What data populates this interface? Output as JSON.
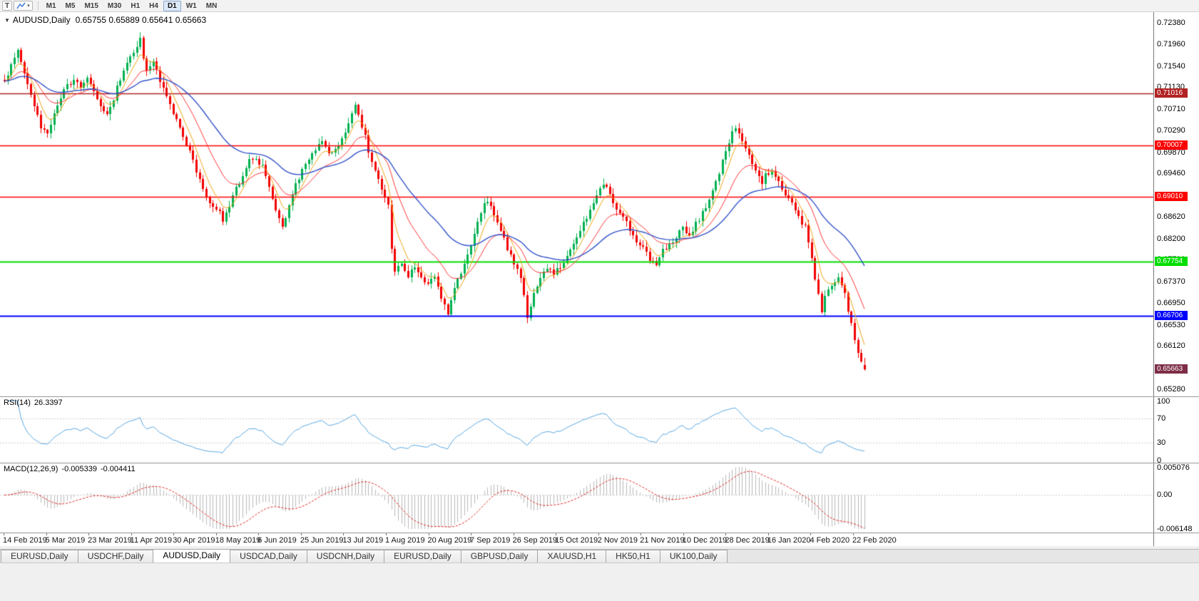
{
  "toolbar": {
    "t_button": "T",
    "dropdown_caret": "▾",
    "timeframes": [
      "M1",
      "M5",
      "M15",
      "M30",
      "H1",
      "H4",
      "D1",
      "W1",
      "MN"
    ],
    "active_timeframe": "D1"
  },
  "chart": {
    "collapse_arrow": "▼",
    "symbol_label": "AUDUSD,Daily",
    "ohlc_text": "0.65755 0.65889 0.65641 0.65663"
  },
  "chart_data": {
    "type": "candlestick",
    "symbol": "AUDUSD",
    "timeframe": "Daily",
    "last_candle": {
      "open": 0.65755,
      "high": 0.65889,
      "low": 0.65641,
      "close": 0.65663
    },
    "current_price_label": "0.65663",
    "current_price_box_color": "#7d2d46",
    "candle_colors": {
      "up": "#00b050",
      "down": "#f20000"
    },
    "price_axis": {
      "ticks": [
        "0.72380",
        "0.71960",
        "0.71540",
        "0.71130",
        "0.70710",
        "0.70290",
        "0.69870",
        "0.69460",
        "0.69040",
        "0.68620",
        "0.68200",
        "0.67790",
        "0.67370",
        "0.66950",
        "0.66530",
        "0.66120",
        "0.65700",
        "0.65280"
      ]
    },
    "time_labels": [
      "14 Feb 2019",
      "5 Mar 2019",
      "23 Mar 2019",
      "11 Apr 2019",
      "30 Apr 2019",
      "18 May 2019",
      "6 Jun 2019",
      "25 Jun 2019",
      "13 Jul 2019",
      "1 Aug 2019",
      "20 Aug 2019",
      "7 Sep 2019",
      "26 Sep 2019",
      "15 Oct 2019",
      "2 Nov 2019",
      "21 Nov 2019",
      "10 Dec 2019",
      "28 Dec 2019",
      "16 Jan 2020",
      "4 Feb 2020",
      "22 Feb 2020"
    ],
    "horizontal_lines": [
      {
        "label": "0.71016",
        "price": 0.71016,
        "color": "#b22222",
        "width": 1.4
      },
      {
        "label": "0.70007",
        "price": 0.70007,
        "color": "#ff0000",
        "width": 1.4
      },
      {
        "label": "0.69010",
        "price": 0.6901,
        "color": "#ff0000",
        "width": 1.4
      },
      {
        "label": "0.67754",
        "price": 0.67754,
        "color": "#00dd00",
        "width": 2
      },
      {
        "label": "0.66706",
        "price": 0.66706,
        "color": "#0000ff",
        "width": 2
      }
    ],
    "moving_averages": [
      {
        "name": "fast-ma-yellow",
        "color": "#eda313",
        "period": 6,
        "width": 1
      },
      {
        "name": "medium-ma-red",
        "color": "#ff3434",
        "period": 16,
        "width": 1
      },
      {
        "name": "slow-ma-blue",
        "color": "#3353c8",
        "period": 38,
        "width": 1.4
      }
    ],
    "candle_count": 261,
    "price_path_anchors": [
      [
        0,
        0.7128
      ],
      [
        2,
        0.7152
      ],
      [
        4,
        0.7188
      ],
      [
        5,
        0.7165
      ],
      [
        7,
        0.712
      ],
      [
        9,
        0.7075
      ],
      [
        11,
        0.704
      ],
      [
        13,
        0.7022
      ],
      [
        15,
        0.706
      ],
      [
        17,
        0.7095
      ],
      [
        19,
        0.7115
      ],
      [
        21,
        0.7128
      ],
      [
        23,
        0.7118
      ],
      [
        25,
        0.7128
      ],
      [
        27,
        0.711
      ],
      [
        29,
        0.708
      ],
      [
        31,
        0.7058
      ],
      [
        33,
        0.7092
      ],
      [
        35,
        0.713
      ],
      [
        37,
        0.7155
      ],
      [
        39,
        0.718
      ],
      [
        41,
        0.7203
      ],
      [
        42,
        0.717
      ],
      [
        43,
        0.714
      ],
      [
        45,
        0.7162
      ],
      [
        47,
        0.7128
      ],
      [
        49,
        0.7095
      ],
      [
        51,
        0.706
      ],
      [
        53,
        0.703
      ],
      [
        55,
        0.7
      ],
      [
        57,
        0.697
      ],
      [
        59,
        0.6935
      ],
      [
        61,
        0.6905
      ],
      [
        63,
        0.688
      ],
      [
        65,
        0.6868
      ],
      [
        66,
        0.6855
      ],
      [
        68,
        0.6885
      ],
      [
        70,
        0.6915
      ],
      [
        72,
        0.6945
      ],
      [
        74,
        0.6968
      ],
      [
        76,
        0.6975
      ],
      [
        78,
        0.6958
      ],
      [
        80,
        0.692
      ],
      [
        82,
        0.6875
      ],
      [
        84,
        0.6842
      ],
      [
        86,
        0.688
      ],
      [
        88,
        0.6925
      ],
      [
        90,
        0.695
      ],
      [
        92,
        0.6972
      ],
      [
        94,
        0.699
      ],
      [
        96,
        0.7005
      ],
      [
        98,
        0.698
      ],
      [
        100,
        0.6995
      ],
      [
        102,
        0.7015
      ],
      [
        104,
        0.704
      ],
      [
        106,
        0.7078
      ],
      [
        108,
        0.704
      ],
      [
        110,
        0.6992
      ],
      [
        112,
        0.6952
      ],
      [
        114,
        0.692
      ],
      [
        116,
        0.688
      ],
      [
        117,
        0.68
      ],
      [
        118,
        0.6755
      ],
      [
        120,
        0.6772
      ],
      [
        122,
        0.6748
      ],
      [
        124,
        0.6762
      ],
      [
        127,
        0.6732
      ],
      [
        130,
        0.6748
      ],
      [
        132,
        0.67
      ],
      [
        134,
        0.6678
      ],
      [
        136,
        0.6722
      ],
      [
        138,
        0.6752
      ],
      [
        140,
        0.679
      ],
      [
        142,
        0.683
      ],
      [
        144,
        0.6872
      ],
      [
        146,
        0.6892
      ],
      [
        148,
        0.6862
      ],
      [
        150,
        0.6832
      ],
      [
        152,
        0.6802
      ],
      [
        154,
        0.6772
      ],
      [
        156,
        0.6742
      ],
      [
        157,
        0.6705
      ],
      [
        158,
        0.6672
      ],
      [
        160,
        0.6712
      ],
      [
        162,
        0.6742
      ],
      [
        164,
        0.6762
      ],
      [
        166,
        0.6748
      ],
      [
        169,
        0.6778
      ],
      [
        172,
        0.6812
      ],
      [
        175,
        0.6848
      ],
      [
        178,
        0.6888
      ],
      [
        180,
        0.6918
      ],
      [
        181,
        0.6928
      ],
      [
        183,
        0.6902
      ],
      [
        186,
        0.6868
      ],
      [
        189,
        0.6838
      ],
      [
        192,
        0.6808
      ],
      [
        195,
        0.6782
      ],
      [
        197,
        0.6772
      ],
      [
        199,
        0.6795
      ],
      [
        202,
        0.6818
      ],
      [
        205,
        0.6838
      ],
      [
        207,
        0.6822
      ],
      [
        209,
        0.6848
      ],
      [
        211,
        0.6868
      ],
      [
        212,
        0.688
      ],
      [
        214,
        0.691
      ],
      [
        216,
        0.695
      ],
      [
        218,
        0.699
      ],
      [
        220,
        0.7028
      ],
      [
        221,
        0.703
      ],
      [
        223,
        0.7008
      ],
      [
        225,
        0.6978
      ],
      [
        227,
        0.695
      ],
      [
        229,
        0.6925
      ],
      [
        230,
        0.6942
      ],
      [
        232,
        0.6952
      ],
      [
        234,
        0.6928
      ],
      [
        236,
        0.6905
      ],
      [
        238,
        0.6885
      ],
      [
        240,
        0.6862
      ],
      [
        242,
        0.684
      ],
      [
        243,
        0.6815
      ],
      [
        244,
        0.6785
      ],
      [
        245,
        0.6745
      ],
      [
        246,
        0.671
      ],
      [
        247,
        0.6682
      ],
      [
        248,
        0.6705
      ],
      [
        250,
        0.6732
      ],
      [
        252,
        0.6748
      ],
      [
        253,
        0.6732
      ],
      [
        254,
        0.6712
      ],
      [
        255,
        0.6682
      ],
      [
        256,
        0.6655
      ],
      [
        257,
        0.6628
      ],
      [
        258,
        0.66
      ],
      [
        259,
        0.6578
      ],
      [
        260,
        0.65663
      ]
    ],
    "indicators": {
      "rsi": {
        "title": "RSI(14)",
        "value": "26.3397",
        "color": "#58a6e0",
        "levels": [
          "100",
          "70",
          "30",
          "0"
        ],
        "level_lines": [
          70,
          30
        ]
      },
      "macd": {
        "title": "MACD(12,26,9)",
        "value_main": "-0.005339",
        "value_signal": "-0.004411",
        "histogram_color": "#b8b8b8",
        "signal_color": "#e02020",
        "scale_labels": [
          "0.005076",
          "0.00",
          "-0.006148"
        ],
        "scale_max": 0.005076,
        "scale_min": -0.006148
      }
    }
  },
  "tabs": {
    "items": [
      "EURUSD,Daily",
      "USDCHF,Daily",
      "AUDUSD,Daily",
      "USDCAD,Daily",
      "USDCNH,Daily",
      "EURUSD,Daily",
      "GBPUSD,Daily",
      "XAUUSD,H1",
      "HK50,H1",
      "UK100,Daily"
    ],
    "active_index": 2
  }
}
